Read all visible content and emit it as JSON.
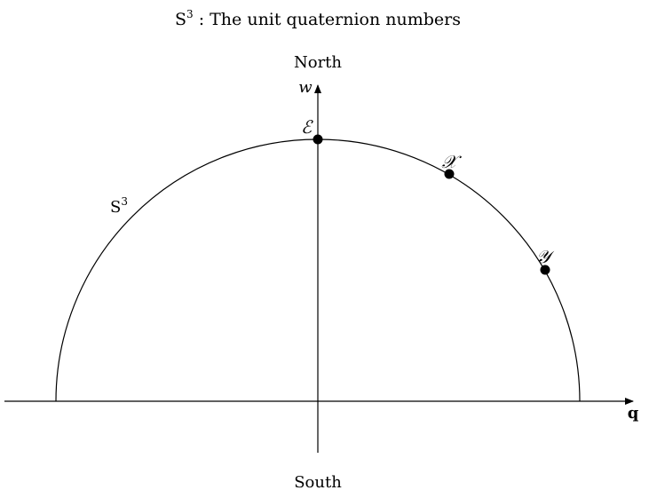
{
  "title": {
    "prefix": "S",
    "superscript": "3",
    "rest": " : The unit quaternion numbers"
  },
  "poles": {
    "north": "North",
    "south": "South"
  },
  "axes": {
    "vertical": "w",
    "horizontal": "q"
  },
  "sphere_label": {
    "prefix": "S",
    "superscript": "3"
  },
  "points": [
    {
      "id": "E",
      "label": "ℰ",
      "angle_deg": 90
    },
    {
      "id": "X",
      "label": "𝒳",
      "angle_deg": 60
    },
    {
      "id": "Y",
      "label": "𝒴",
      "angle_deg": 30
    }
  ]
}
